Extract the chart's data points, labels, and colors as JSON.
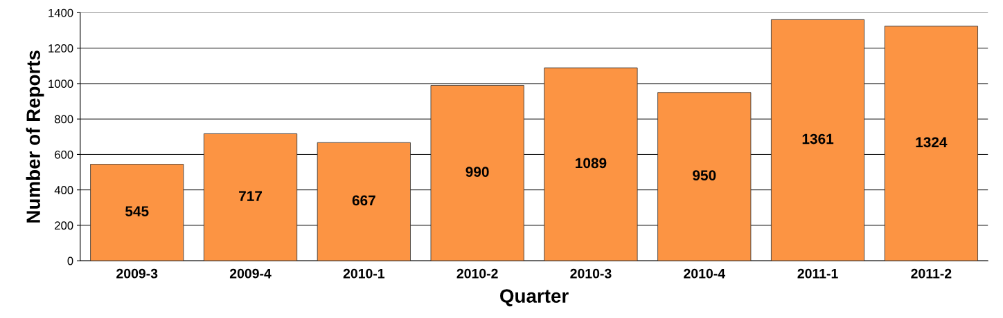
{
  "chart_data": {
    "type": "bar",
    "xlabel": "Quarter",
    "ylabel": "Number of Reports",
    "categories": [
      "2009-3",
      "2009-4",
      "2010-1",
      "2010-2",
      "2010-3",
      "2010-4",
      "2011-1",
      "2011-2"
    ],
    "values": [
      545,
      717,
      667,
      990,
      1089,
      950,
      1361,
      1324
    ],
    "color": "#fc9443",
    "ylim": [
      0,
      1400
    ],
    "yticks": [
      0,
      200,
      400,
      600,
      800,
      1000,
      1200,
      1400
    ],
    "grid": "y",
    "data_labels": true
  }
}
